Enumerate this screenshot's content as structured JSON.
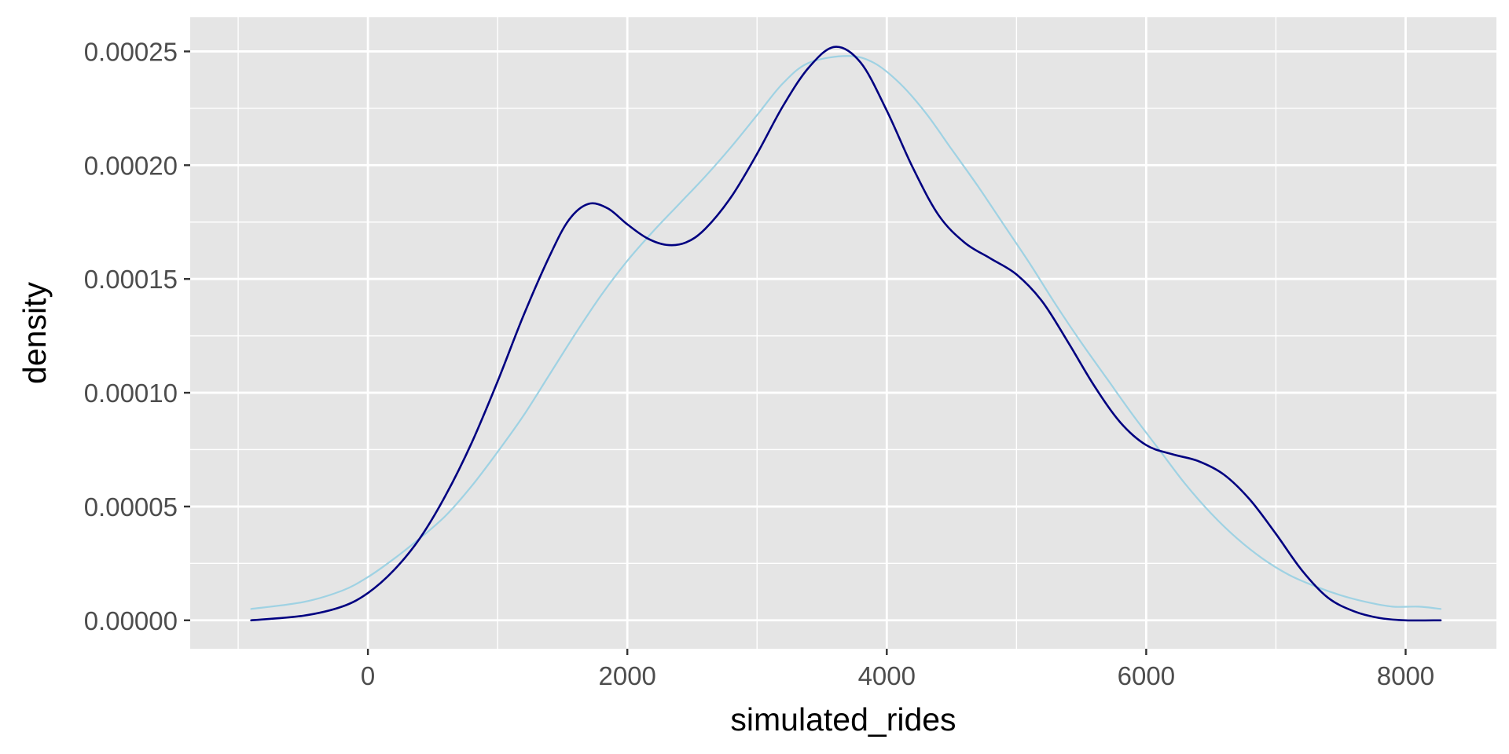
{
  "chart_data": {
    "type": "line",
    "title": "",
    "xlabel": "simulated_rides",
    "ylabel": "density",
    "xlim": [
      -1370,
      8700
    ],
    "ylim": [
      -1.25e-05,
      0.000265
    ],
    "x_ticks": [
      0,
      2000,
      4000,
      6000,
      8000
    ],
    "x_tick_labels": [
      "0",
      "2000",
      "4000",
      "6000",
      "8000"
    ],
    "y_ticks": [
      0,
      5e-05,
      0.0001,
      0.00015,
      0.0002,
      0.00025
    ],
    "y_tick_labels": [
      "0.00000",
      "0.00005",
      "0.00010",
      "0.00015",
      "0.00020",
      "0.00025"
    ],
    "grid": true,
    "legend": "none",
    "series": [
      {
        "color": "#000080",
        "x": [
          -900,
          -500,
          -200,
          0,
          200,
          400,
          600,
          800,
          1000,
          1200,
          1400,
          1550,
          1700,
          1850,
          2000,
          2150,
          2300,
          2450,
          2600,
          2800,
          3000,
          3200,
          3400,
          3600,
          3800,
          4000,
          4200,
          4400,
          4600,
          4800,
          5000,
          5200,
          5400,
          5600,
          5800,
          6000,
          6200,
          6400,
          6600,
          6800,
          7000,
          7200,
          7400,
          7600,
          7800,
          8000,
          8270
        ],
        "y": [
          0,
          2e-06,
          6e-06,
          1.2e-05,
          2.2e-05,
          3.6e-05,
          5.5e-05,
          7.8e-05,
          0.000105,
          0.000134,
          0.00016,
          0.000176,
          0.000183,
          0.000181,
          0.000174,
          0.000168,
          0.000165,
          0.000166,
          0.000172,
          0.000186,
          0.000205,
          0.000226,
          0.000243,
          0.000252,
          0.000245,
          0.000224,
          0.000199,
          0.000178,
          0.000166,
          0.000159,
          0.000152,
          0.00014,
          0.000122,
          0.000103,
          8.7e-05,
          7.7e-05,
          7.3e-05,
          7e-05,
          6.4e-05,
          5.3e-05,
          3.8e-05,
          2.2e-05,
          1e-05,
          4e-06,
          1e-06,
          0,
          0
        ]
      },
      {
        "color": "#9fd2e3",
        "x": [
          -900,
          -500,
          -200,
          0,
          200,
          400,
          600,
          800,
          1000,
          1200,
          1400,
          1600,
          1800,
          2000,
          2200,
          2400,
          2600,
          2800,
          3000,
          3200,
          3400,
          3700,
          3900,
          4100,
          4300,
          4500,
          4700,
          4900,
          5100,
          5300,
          5500,
          5700,
          5900,
          6100,
          6300,
          6500,
          6700,
          6900,
          7100,
          7300,
          7500,
          7700,
          7900,
          8100,
          8270
        ],
        "y": [
          5e-06,
          8e-06,
          1.3e-05,
          1.9e-05,
          2.7e-05,
          3.6e-05,
          4.6e-05,
          5.9e-05,
          7.4e-05,
          9e-05,
          0.000108,
          0.000126,
          0.000143,
          0.000158,
          0.000171,
          0.000183,
          0.000195,
          0.000208,
          0.000222,
          0.000236,
          0.000245,
          0.000248,
          0.000245,
          0.000236,
          0.000223,
          0.000207,
          0.000191,
          0.000174,
          0.000157,
          0.000139,
          0.000122,
          0.000106,
          9e-05,
          7.5e-05,
          6e-05,
          4.7e-05,
          3.6e-05,
          2.7e-05,
          2e-05,
          1.5e-05,
          1.1e-05,
          8e-06,
          6e-06,
          6e-06,
          5e-06
        ]
      }
    ]
  }
}
